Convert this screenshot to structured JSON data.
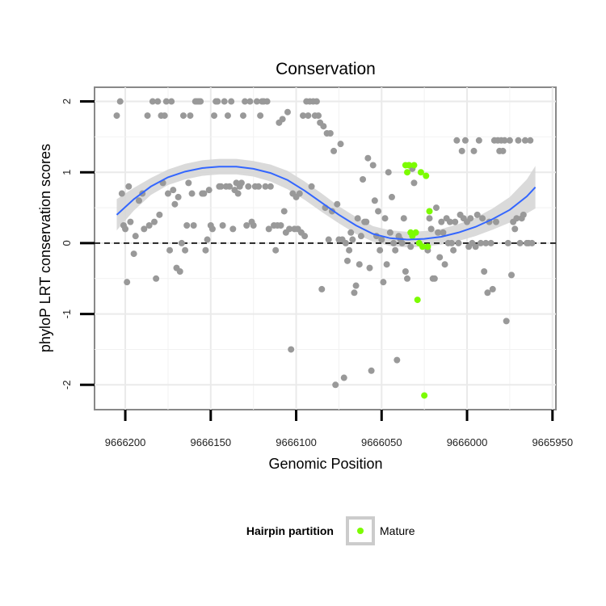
{
  "chart_data": {
    "type": "scatter",
    "title": "Conservation",
    "xlabel": "Genomic Position",
    "ylabel": "phyloP LRT conservation scores",
    "xlim": [
      9666218,
      9665948
    ],
    "x_reversed": true,
    "ylim": [
      -2.35,
      2.2
    ],
    "x_ticks": [
      9666200,
      9666150,
      9666100,
      9666050,
      9666000,
      9665950
    ],
    "x_tick_labels": [
      "9666200",
      "9666150",
      "9666100",
      "9666050",
      "9666000",
      "9665950"
    ],
    "y_ticks": [
      2,
      1,
      0,
      -1,
      -2
    ],
    "y_tick_labels": [
      "2",
      "1",
      "0",
      "-1",
      "-2"
    ],
    "reference_line": 0,
    "grid": true,
    "legend": {
      "title": "Hairpin partition",
      "entries": [
        {
          "label": "Mature",
          "color": "#7cfc00"
        }
      ],
      "placement": "bottom"
    },
    "colors": {
      "background_points": "#999999",
      "mature_points": "#7cfc00",
      "smooth_line": "#3366ff",
      "confidence_band": "#d6d6d6",
      "panel_border": "#888888"
    },
    "series": [
      {
        "name": "Other",
        "color": "#999999",
        "points": [
          [
            9666205,
            1.8
          ],
          [
            9666203,
            2.0
          ],
          [
            9666202,
            0.7
          ],
          [
            9666201,
            0.25
          ],
          [
            9666200,
            0.2
          ],
          [
            9666199,
            -0.55
          ],
          [
            9666198,
            0.8
          ],
          [
            9666197,
            0.3
          ],
          [
            9666195,
            -0.15
          ],
          [
            9666194,
            0.1
          ],
          [
            9666192,
            0.6
          ],
          [
            9666190,
            0.7
          ],
          [
            9666189,
            0.2
          ],
          [
            9666187,
            1.8
          ],
          [
            9666186,
            0.25
          ],
          [
            9666184,
            2.0
          ],
          [
            9666183,
            0.3
          ],
          [
            9666182,
            -0.5
          ],
          [
            9666181,
            2.0
          ],
          [
            9666180,
            0.4
          ],
          [
            9666179,
            1.8
          ],
          [
            9666178,
            0.85
          ],
          [
            9666177,
            1.8
          ],
          [
            9666176,
            2.0
          ],
          [
            9666175,
            0.7
          ],
          [
            9666174,
            -0.1
          ],
          [
            9666173,
            2.0
          ],
          [
            9666172,
            0.75
          ],
          [
            9666171,
            0.55
          ],
          [
            9666170,
            -0.35
          ],
          [
            9666169,
            0.65
          ],
          [
            9666168,
            -0.4
          ],
          [
            9666167,
            0.0
          ],
          [
            9666166,
            1.8
          ],
          [
            9666165,
            -0.1
          ],
          [
            9666164,
            0.25
          ],
          [
            9666163,
            0.85
          ],
          [
            9666162,
            1.8
          ],
          [
            9666161,
            0.7
          ],
          [
            9666160,
            0.25
          ],
          [
            9666159,
            2.0
          ],
          [
            9666158,
            2.0
          ],
          [
            9666157,
            2.0
          ],
          [
            9666156,
            2.0
          ],
          [
            9666155,
            0.7
          ],
          [
            9666154,
            0.7
          ],
          [
            9666153,
            -0.1
          ],
          [
            9666152,
            0.05
          ],
          [
            9666151,
            0.75
          ],
          [
            9666150,
            0.25
          ],
          [
            9666149,
            0.2
          ],
          [
            9666148,
            1.8
          ],
          [
            9666147,
            2.0
          ],
          [
            9666146,
            2.0
          ],
          [
            9666145,
            0.8
          ],
          [
            9666144,
            0.8
          ],
          [
            9666143,
            0.25
          ],
          [
            9666142,
            2.0
          ],
          [
            9666141,
            0.8
          ],
          [
            9666140,
            1.8
          ],
          [
            9666139,
            0.8
          ],
          [
            9666138,
            2.0
          ],
          [
            9666137,
            0.2
          ],
          [
            9666136,
            0.75
          ],
          [
            9666135,
            0.85
          ],
          [
            9666134,
            0.7
          ],
          [
            9666133,
            0.8
          ],
          [
            9666132,
            0.85
          ],
          [
            9666131,
            1.8
          ],
          [
            9666130,
            2.0
          ],
          [
            9666129,
            0.25
          ],
          [
            9666128,
            0.8
          ],
          [
            9666127,
            2.0
          ],
          [
            9666126,
            0.3
          ],
          [
            9666125,
            0.25
          ],
          [
            9666124,
            0.8
          ],
          [
            9666123,
            2.0
          ],
          [
            9666122,
            0.8
          ],
          [
            9666121,
            1.8
          ],
          [
            9666120,
            2.0
          ],
          [
            9666119,
            2.0
          ],
          [
            9666118,
            0.8
          ],
          [
            9666117,
            2.0
          ],
          [
            9666116,
            0.2
          ],
          [
            9666115,
            0.8
          ],
          [
            9666113,
            0.25
          ],
          [
            9666112,
            -0.1
          ],
          [
            9666111,
            0.25
          ],
          [
            9666110,
            1.7
          ],
          [
            9666109,
            0.25
          ],
          [
            9666108,
            1.75
          ],
          [
            9666107,
            0.45
          ],
          [
            9666106,
            0.15
          ],
          [
            9666105,
            1.85
          ],
          [
            9666104,
            0.2
          ],
          [
            9666103,
            -1.5
          ],
          [
            9666102,
            0.7
          ],
          [
            9666101,
            0.2
          ],
          [
            9666100,
            0.65
          ],
          [
            9666099,
            0.2
          ],
          [
            9666098,
            0.7
          ],
          [
            9666097,
            0.15
          ],
          [
            9666096,
            1.8
          ],
          [
            9666095,
            0.1
          ],
          [
            9666094,
            2.0
          ],
          [
            9666093,
            1.8
          ],
          [
            9666092,
            2.0
          ],
          [
            9666091,
            0.8
          ],
          [
            9666090,
            2.0
          ],
          [
            9666089,
            1.8
          ],
          [
            9666088,
            2.0
          ],
          [
            9666087,
            1.8
          ],
          [
            9666086,
            1.7
          ],
          [
            9666085,
            -0.65
          ],
          [
            9666084,
            1.65
          ],
          [
            9666083,
            0.5
          ],
          [
            9666082,
            1.55
          ],
          [
            9666081,
            0.05
          ],
          [
            9666080,
            1.55
          ],
          [
            9666079,
            0.45
          ],
          [
            9666078,
            1.3
          ],
          [
            9666077,
            -2.0
          ],
          [
            9666076,
            0.55
          ],
          [
            9666075,
            0.05
          ],
          [
            9666074,
            1.4
          ],
          [
            9666073,
            0.05
          ],
          [
            9666072,
            -1.9
          ],
          [
            9666071,
            0.0
          ],
          [
            9666070,
            -0.25
          ],
          [
            9666069,
            -0.1
          ],
          [
            9666068,
            0.15
          ],
          [
            9666067,
            0.05
          ],
          [
            9666066,
            -0.7
          ],
          [
            9666065,
            -0.6
          ],
          [
            9666064,
            0.35
          ],
          [
            9666063,
            -0.3
          ],
          [
            9666062,
            0.1
          ],
          [
            9666061,
            0.9
          ],
          [
            9666060,
            0.3
          ],
          [
            9666059,
            0.3
          ],
          [
            9666058,
            1.2
          ],
          [
            9666057,
            -0.35
          ],
          [
            9666056,
            -1.8
          ],
          [
            9666055,
            1.1
          ],
          [
            9666054,
            0.6
          ],
          [
            9666053,
            0.1
          ],
          [
            9666052,
            0.45
          ],
          [
            9666051,
            -0.1
          ],
          [
            9666050,
            0.05
          ],
          [
            9666049,
            -0.55
          ],
          [
            9666048,
            0.35
          ],
          [
            9666047,
            -0.3
          ],
          [
            9666046,
            1.0
          ],
          [
            9666045,
            0.15
          ],
          [
            9666044,
            0.65
          ],
          [
            9666043,
            0.0
          ],
          [
            9666042,
            -0.1
          ],
          [
            9666041,
            -1.65
          ],
          [
            9666040,
            0.1
          ],
          [
            9666039,
            0.05
          ],
          [
            9666038,
            0.0
          ],
          [
            9666037,
            0.35
          ],
          [
            9666036,
            -0.4
          ],
          [
            9666035,
            -0.5
          ],
          [
            9666034,
            1.1
          ],
          [
            9666033,
            -0.05
          ],
          [
            9666032,
            1.05
          ],
          [
            9666031,
            0.85
          ],
          [
            9666023,
            -0.1
          ],
          [
            9666022,
            0.35
          ],
          [
            9666021,
            0.2
          ],
          [
            9666020,
            -0.5
          ],
          [
            9666019,
            -0.5
          ],
          [
            9666018,
            0.5
          ],
          [
            9666017,
            0.15
          ],
          [
            9666016,
            -0.2
          ],
          [
            9666015,
            0.3
          ],
          [
            9666014,
            0.15
          ],
          [
            9666013,
            -0.3
          ],
          [
            9666012,
            0.35
          ],
          [
            9666011,
            0.0
          ],
          [
            9666010,
            0.3
          ],
          [
            9666009,
            0.0
          ],
          [
            9666008,
            -0.1
          ],
          [
            9666007,
            0.3
          ],
          [
            9666006,
            1.45
          ],
          [
            9666005,
            0.0
          ],
          [
            9666004,
            0.4
          ],
          [
            9666003,
            1.3
          ],
          [
            9666002,
            0.35
          ],
          [
            9666001,
            1.45
          ],
          [
            9666000,
            0.3
          ],
          [
            9665999,
            -0.05
          ],
          [
            9665998,
            0.35
          ],
          [
            9665997,
            0.0
          ],
          [
            9665996,
            1.3
          ],
          [
            9665995,
            -0.05
          ],
          [
            9665994,
            0.4
          ],
          [
            9665993,
            1.45
          ],
          [
            9665992,
            0.0
          ],
          [
            9665991,
            0.35
          ],
          [
            9665990,
            -0.4
          ],
          [
            9665989,
            0.0
          ],
          [
            9665988,
            -0.7
          ],
          [
            9665987,
            0.3
          ],
          [
            9665986,
            0.0
          ],
          [
            9665985,
            -0.65
          ],
          [
            9665984,
            1.45
          ],
          [
            9665983,
            0.3
          ],
          [
            9665982,
            1.45
          ],
          [
            9665981,
            1.3
          ],
          [
            9665980,
            1.45
          ],
          [
            9665979,
            1.3
          ],
          [
            9665978,
            1.45
          ],
          [
            9665977,
            -1.1
          ],
          [
            9665976,
            0.0
          ],
          [
            9665975,
            1.45
          ],
          [
            9665974,
            -0.45
          ],
          [
            9665973,
            0.3
          ],
          [
            9665972,
            0.2
          ],
          [
            9665971,
            0.35
          ],
          [
            9665970,
            1.45
          ],
          [
            9665969,
            0.0
          ],
          [
            9665968,
            0.35
          ],
          [
            9665967,
            0.4
          ],
          [
            9665966,
            1.45
          ],
          [
            9665965,
            0.0
          ],
          [
            9665964,
            0.0
          ],
          [
            9665963,
            1.45
          ],
          [
            9665962,
            0.0
          ]
        ]
      },
      {
        "name": "Mature",
        "color": "#7cfc00",
        "points": [
          [
            9666036,
            1.1
          ],
          [
            9666035,
            1.0
          ],
          [
            9666034,
            1.1
          ],
          [
            9666033,
            0.15
          ],
          [
            9666032,
            0.1
          ],
          [
            9666031,
            1.1
          ],
          [
            9666030,
            0.15
          ],
          [
            9666029,
            -0.8
          ],
          [
            9666028,
            0.0
          ],
          [
            9666027,
            1.0
          ],
          [
            9666026,
            -0.05
          ],
          [
            9666025,
            -2.15
          ],
          [
            9666024,
            0.95
          ],
          [
            9666023,
            -0.05
          ],
          [
            9666022,
            0.45
          ]
        ]
      }
    ],
    "smooth": {
      "x": [
        9666205,
        9666195,
        9666185,
        9666175,
        9666165,
        9666155,
        9666145,
        9666135,
        9666125,
        9666115,
        9666105,
        9666095,
        9666085,
        9666075,
        9666065,
        9666055,
        9666045,
        9666035,
        9666025,
        9666015,
        9666005,
        9665995,
        9665985,
        9665975,
        9665965,
        9665960
      ],
      "y": [
        0.4,
        0.62,
        0.8,
        0.93,
        1.01,
        1.06,
        1.08,
        1.08,
        1.05,
        0.99,
        0.89,
        0.74,
        0.57,
        0.4,
        0.25,
        0.13,
        0.07,
        0.05,
        0.06,
        0.09,
        0.15,
        0.23,
        0.34,
        0.47,
        0.66,
        0.79
      ],
      "band": [
        0.22,
        0.16,
        0.12,
        0.11,
        0.11,
        0.11,
        0.11,
        0.11,
        0.11,
        0.12,
        0.13,
        0.13,
        0.13,
        0.12,
        0.12,
        0.11,
        0.11,
        0.11,
        0.11,
        0.11,
        0.12,
        0.13,
        0.15,
        0.18,
        0.24,
        0.3
      ]
    }
  }
}
